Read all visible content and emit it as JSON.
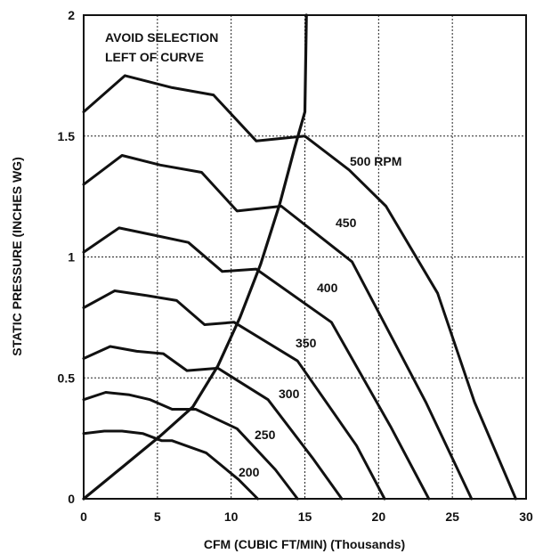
{
  "chart_data": {
    "type": "line",
    "title": "",
    "xlabel": "CFM (CUBIC FT/MIN) (Thousands)",
    "ylabel": "STATIC PRESSURE (INCHES WG)",
    "xlim": [
      0,
      30
    ],
    "ylim": [
      0,
      2
    ],
    "xticks": [
      "0",
      "5",
      "10",
      "15",
      "20",
      "25",
      "30"
    ],
    "yticks": [
      "0",
      "0.5",
      "1",
      "1.5",
      "2"
    ],
    "grid": true,
    "annotation_lines": [
      "AVOID SELECTION",
      "LEFT OF CURVE"
    ],
    "series": [
      {
        "name": "500 RPM",
        "label": "500 RPM",
        "x": [
          0,
          2.8,
          6,
          8.8,
          11.7,
          15,
          18,
          20.5,
          24,
          26.5,
          29.3
        ],
        "y": [
          1.6,
          1.75,
          1.7,
          1.67,
          1.48,
          1.5,
          1.36,
          1.21,
          0.85,
          0.4,
          0
        ]
      },
      {
        "name": "450",
        "label": "450",
        "x": [
          0,
          2.6,
          5.2,
          8,
          10.4,
          13.4,
          18.2,
          23.2,
          26.3
        ],
        "y": [
          1.3,
          1.42,
          1.38,
          1.35,
          1.19,
          1.21,
          0.98,
          0.4,
          0
        ]
      },
      {
        "name": "400",
        "label": "400",
        "x": [
          0,
          2.4,
          4.8,
          7.1,
          9.4,
          11.7,
          16.8,
          20.8,
          23.4
        ],
        "y": [
          1.02,
          1.12,
          1.09,
          1.06,
          0.94,
          0.95,
          0.73,
          0.3,
          0
        ]
      },
      {
        "name": "350",
        "label": "350",
        "x": [
          0,
          2.1,
          4.3,
          6.3,
          8.2,
          10.2,
          14.5,
          18.5,
          20.4
        ],
        "y": [
          0.79,
          0.86,
          0.84,
          0.82,
          0.72,
          0.73,
          0.57,
          0.22,
          0
        ]
      },
      {
        "name": "300",
        "label": "300",
        "x": [
          0,
          1.8,
          3.6,
          5.4,
          7,
          9.1,
          12.5,
          15.5,
          17.5
        ],
        "y": [
          0.58,
          0.63,
          0.61,
          0.6,
          0.53,
          0.54,
          0.41,
          0.17,
          0
        ]
      },
      {
        "name": "250",
        "label": "250",
        "x": [
          0,
          1.5,
          3.1,
          4.5,
          6,
          7.6,
          10.4,
          13,
          14.5
        ],
        "y": [
          0.41,
          0.44,
          0.43,
          0.41,
          0.37,
          0.37,
          0.29,
          0.12,
          0
        ]
      },
      {
        "name": "200",
        "label": "200",
        "x": [
          0,
          1.4,
          2.6,
          4,
          5.3,
          6,
          8.3,
          10.5,
          11.8
        ],
        "y": [
          0.27,
          0.28,
          0.28,
          0.27,
          0.24,
          0.24,
          0.19,
          0.08,
          0
        ]
      }
    ],
    "limit_curve": {
      "x": [
        0,
        2.6,
        5.2,
        7.4,
        9.1,
        10.6,
        12,
        13.3,
        14.3,
        15,
        15.1
      ],
      "y": [
        0,
        0.13,
        0.26,
        0.38,
        0.55,
        0.75,
        0.97,
        1.22,
        1.45,
        1.6,
        2
      ]
    }
  }
}
